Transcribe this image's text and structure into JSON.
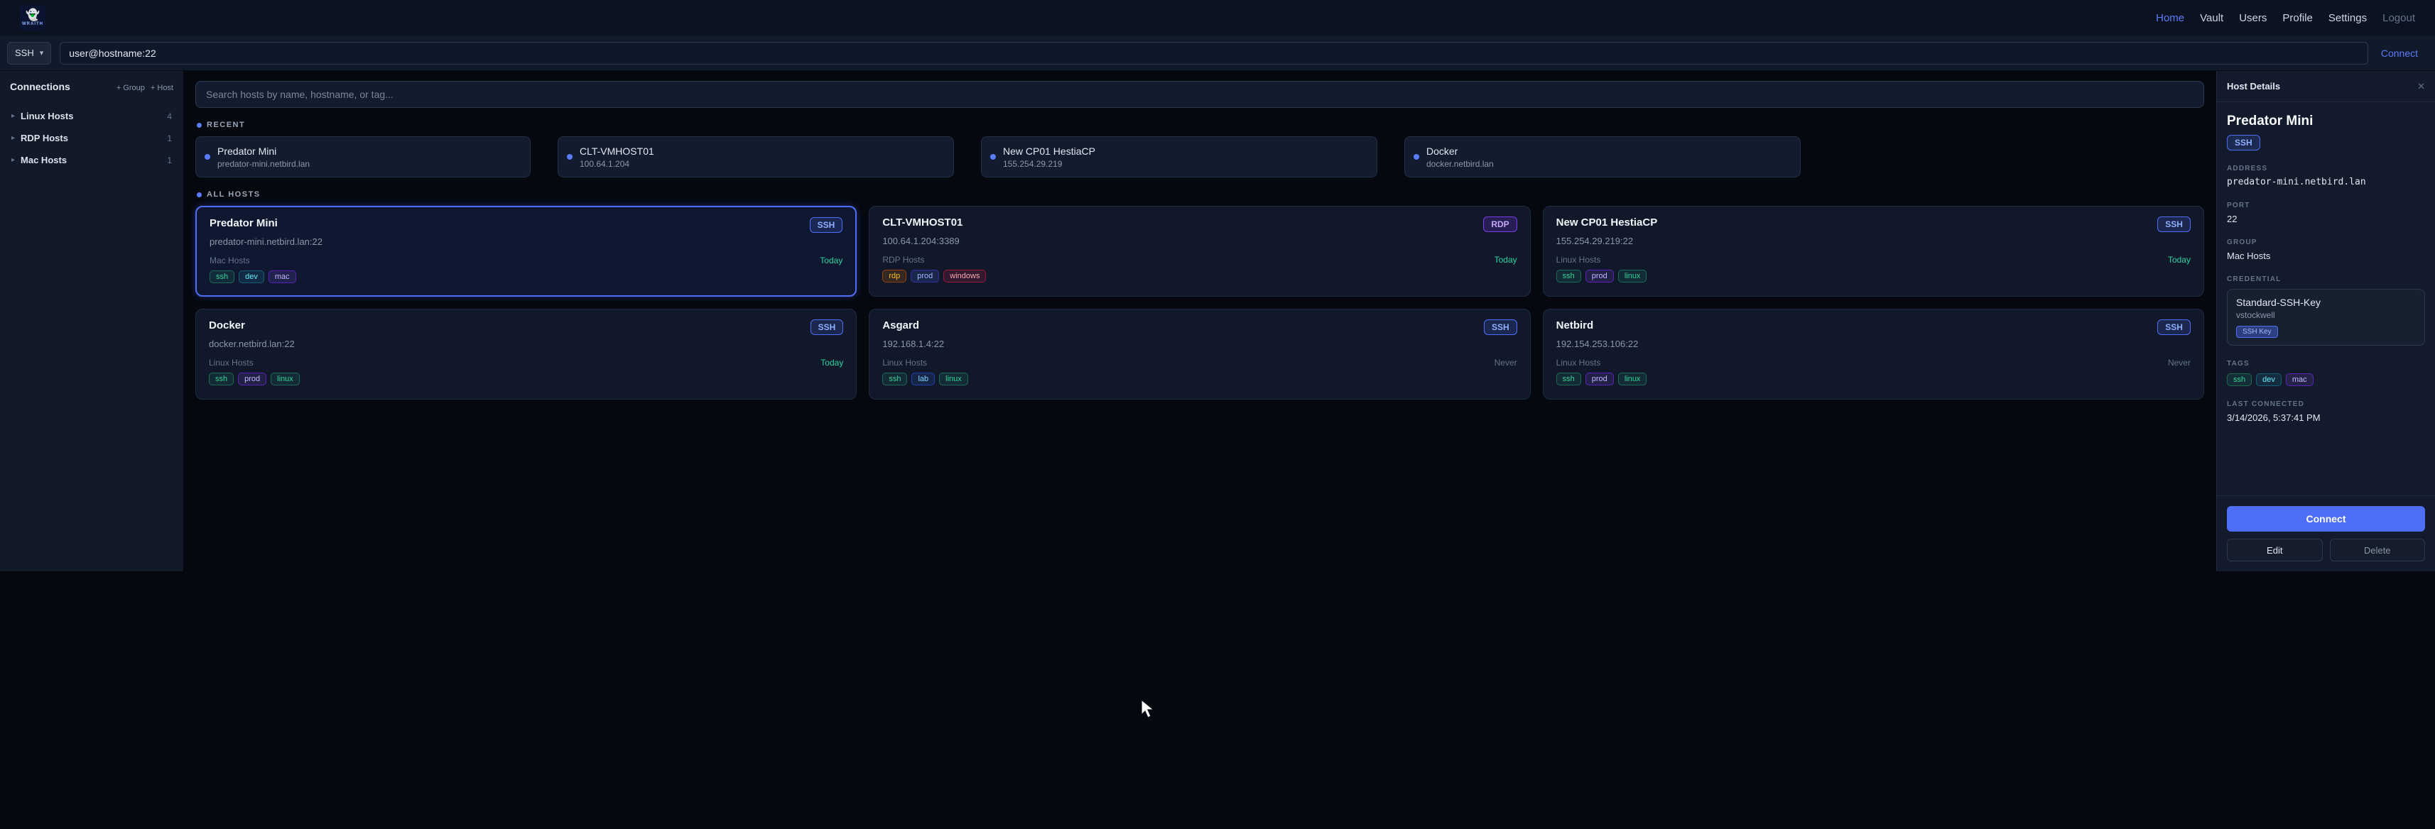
{
  "colors": {
    "accent": "#4f6ef7",
    "today": "#2dd4a0",
    "never": "#64748b",
    "bg": "#05080f"
  },
  "topnav": {
    "brand": "WRAITH",
    "links": [
      {
        "label": "Home",
        "state": "active"
      },
      {
        "label": "Vault",
        "state": "normal"
      },
      {
        "label": "Users",
        "state": "normal"
      },
      {
        "label": "Profile",
        "state": "normal"
      },
      {
        "label": "Settings",
        "state": "normal"
      },
      {
        "label": "Logout",
        "state": "muted"
      }
    ]
  },
  "quickconnect": {
    "protocol": "SSH",
    "input_value": "user@hostname:22",
    "connect_label": "Connect"
  },
  "sidebar": {
    "title": "Connections",
    "add_group_label": "+ Group",
    "add_host_label": "+ Host",
    "items": [
      {
        "label": "Linux Hosts",
        "count": "4"
      },
      {
        "label": "RDP Hosts",
        "count": "1"
      },
      {
        "label": "Mac Hosts",
        "count": "1"
      }
    ]
  },
  "main": {
    "search_placeholder": "Search hosts by name, hostname, or tag...",
    "recent": {
      "title": "RECENT",
      "cards": [
        {
          "name": "Predator Mini",
          "host": "predator-mini.netbird.lan"
        },
        {
          "name": "CLT-VMHOST01",
          "host": "100.64.1.204"
        },
        {
          "name": "New CP01 HestiaCP",
          "host": "155.254.29.219"
        },
        {
          "name": "Docker",
          "host": "docker.netbird.lan"
        }
      ]
    },
    "all_hosts": {
      "title": "ALL HOSTS",
      "cards": [
        {
          "name": "Predator Mini",
          "address": "predator-mini.netbird.lan:22",
          "protocol": "SSH",
          "group": "Mac Hosts",
          "last_connected": "Today",
          "last_state": "today",
          "selected": true,
          "tags": [
            {
              "label": "ssh",
              "color": "green"
            },
            {
              "label": "dev",
              "color": "cyan"
            },
            {
              "label": "mac",
              "color": "purple"
            }
          ]
        },
        {
          "name": "CLT-VMHOST01",
          "address": "100.64.1.204:3389",
          "protocol": "RDP",
          "group": "RDP Hosts",
          "last_connected": "Today",
          "last_state": "today",
          "selected": false,
          "tags": [
            {
              "label": "rdp",
              "color": "orange"
            },
            {
              "label": "prod",
              "color": "indigo"
            },
            {
              "label": "windows",
              "color": "red"
            }
          ]
        },
        {
          "name": "New CP01 HestiaCP",
          "address": "155.254.29.219:22",
          "protocol": "SSH",
          "group": "Linux Hosts",
          "last_connected": "Today",
          "last_state": "today",
          "selected": false,
          "tags": [
            {
              "label": "ssh",
              "color": "green"
            },
            {
              "label": "prod",
              "color": "purple"
            },
            {
              "label": "linux",
              "color": "green"
            }
          ]
        },
        {
          "name": "Docker",
          "address": "docker.netbird.lan:22",
          "protocol": "SSH",
          "group": "Linux Hosts",
          "last_connected": "Today",
          "last_state": "today",
          "selected": false,
          "tags": [
            {
              "label": "ssh",
              "color": "green"
            },
            {
              "label": "prod",
              "color": "purple"
            },
            {
              "label": "linux",
              "color": "green"
            }
          ]
        },
        {
          "name": "Asgard",
          "address": "192.168.1.4:22",
          "protocol": "SSH",
          "group": "Linux Hosts",
          "last_connected": "Never",
          "last_state": "never",
          "selected": false,
          "tags": [
            {
              "label": "ssh",
              "color": "green"
            },
            {
              "label": "lab",
              "color": "blue"
            },
            {
              "label": "linux",
              "color": "green"
            }
          ]
        },
        {
          "name": "Netbird",
          "address": "192.154.253.106:22",
          "protocol": "SSH",
          "group": "Linux Hosts",
          "last_connected": "Never",
          "last_state": "never",
          "selected": false,
          "tags": [
            {
              "label": "ssh",
              "color": "green"
            },
            {
              "label": "prod",
              "color": "purple"
            },
            {
              "label": "linux",
              "color": "green"
            }
          ]
        }
      ]
    }
  },
  "details": {
    "panel_title": "Host Details",
    "close_glyph": "✕",
    "name": "Predator Mini",
    "protocol": "SSH",
    "address_label": "ADDRESS",
    "address": "predator-mini.netbird.lan",
    "port_label": "PORT",
    "port": "22",
    "group_label": "GROUP",
    "group": "Mac Hosts",
    "credential_label": "CREDENTIAL",
    "credential": {
      "name": "Standard-SSH-Key",
      "user": "vstockwell",
      "type": "SSH Key"
    },
    "tags_label": "TAGS",
    "tags": [
      {
        "label": "ssh",
        "color": "green"
      },
      {
        "label": "dev",
        "color": "cyan"
      },
      {
        "label": "mac",
        "color": "purple"
      }
    ],
    "last_label": "LAST CONNECTED",
    "last_connected": "3/14/2026, 5:37:41 PM",
    "connect_label": "Connect",
    "edit_label": "Edit",
    "delete_label": "Delete"
  }
}
